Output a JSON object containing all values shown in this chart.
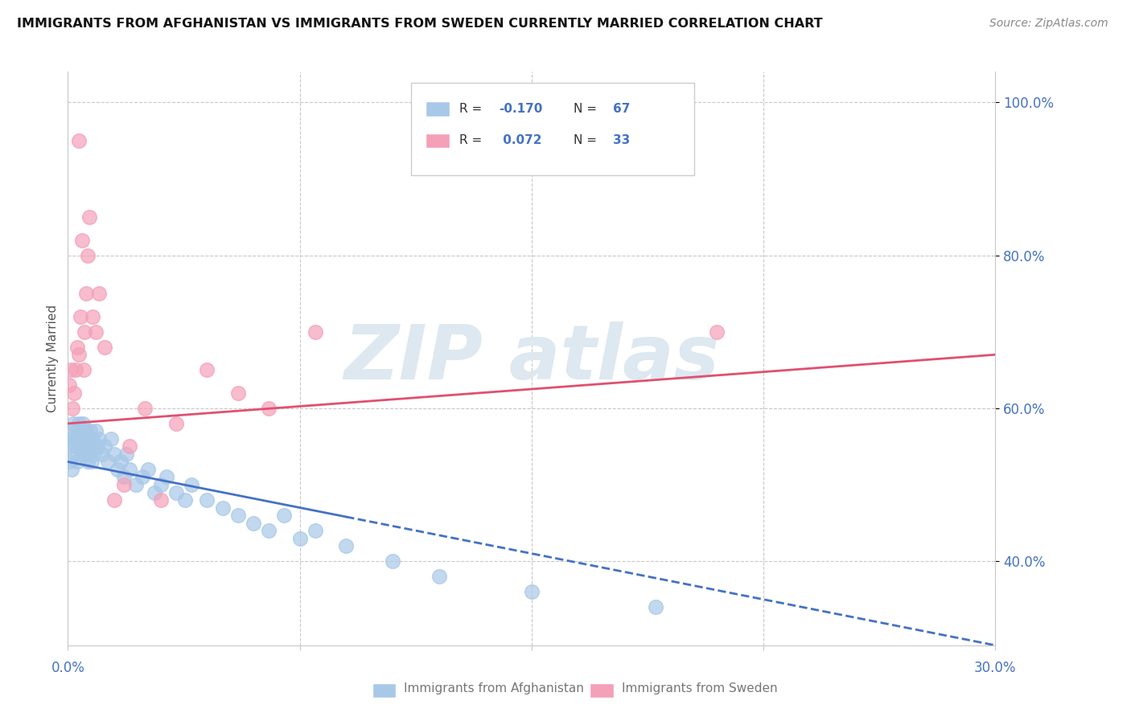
{
  "title": "IMMIGRANTS FROM AFGHANISTAN VS IMMIGRANTS FROM SWEDEN CURRENTLY MARRIED CORRELATION CHART",
  "source": "Source: ZipAtlas.com",
  "ylabel": "Currently Married",
  "xlim": [
    0.0,
    30.0
  ],
  "ylim": [
    29.0,
    104.0
  ],
  "yticks": [
    40.0,
    60.0,
    80.0,
    100.0
  ],
  "ytick_labels": [
    "40.0%",
    "60.0%",
    "80.0%",
    "100.0%"
  ],
  "blue_color": "#a8c8e8",
  "pink_color": "#f4a0b8",
  "blue_line_color": "#4472c4",
  "pink_line_color": "#e05070",
  "legend_text_color": "#4472c4",
  "grid_color": "#c8c8c8",
  "watermark_color": "#dde8f0",
  "afghanistan_x": [
    0.05,
    0.08,
    0.1,
    0.12,
    0.15,
    0.18,
    0.2,
    0.22,
    0.25,
    0.28,
    0.3,
    0.32,
    0.35,
    0.38,
    0.4,
    0.42,
    0.45,
    0.48,
    0.5,
    0.52,
    0.55,
    0.58,
    0.6,
    0.62,
    0.65,
    0.68,
    0.7,
    0.72,
    0.75,
    0.78,
    0.8,
    0.85,
    0.9,
    0.95,
    1.0,
    1.1,
    1.2,
    1.3,
    1.4,
    1.5,
    1.6,
    1.7,
    1.8,
    1.9,
    2.0,
    2.2,
    2.4,
    2.6,
    2.8,
    3.0,
    3.2,
    3.5,
    3.8,
    4.0,
    4.5,
    5.0,
    5.5,
    6.0,
    6.5,
    7.0,
    7.5,
    8.0,
    9.0,
    10.5,
    12.0,
    15.0,
    19.0
  ],
  "afghanistan_y": [
    53.0,
    57.0,
    55.0,
    52.0,
    56.0,
    58.0,
    54.0,
    56.0,
    55.0,
    57.0,
    53.0,
    56.0,
    58.0,
    55.0,
    57.0,
    54.0,
    56.0,
    58.0,
    55.0,
    57.0,
    56.0,
    54.0,
    57.0,
    55.0,
    53.0,
    56.0,
    54.0,
    57.0,
    55.0,
    53.0,
    56.0,
    54.0,
    57.0,
    55.0,
    56.0,
    54.0,
    55.0,
    53.0,
    56.0,
    54.0,
    52.0,
    53.0,
    51.0,
    54.0,
    52.0,
    50.0,
    51.0,
    52.0,
    49.0,
    50.0,
    51.0,
    49.0,
    48.0,
    50.0,
    48.0,
    47.0,
    46.0,
    45.0,
    44.0,
    46.0,
    43.0,
    44.0,
    42.0,
    40.0,
    38.0,
    36.0,
    34.0
  ],
  "sweden_x": [
    0.05,
    0.1,
    0.15,
    0.2,
    0.25,
    0.3,
    0.35,
    0.4,
    0.45,
    0.5,
    0.55,
    0.6,
    0.65,
    0.7,
    0.8,
    0.9,
    1.0,
    1.2,
    1.5,
    1.8,
    2.0,
    2.5,
    3.0,
    3.5,
    4.5,
    5.5,
    6.5,
    8.0,
    21.0
  ],
  "sweden_y": [
    63.0,
    65.0,
    60.0,
    62.0,
    65.0,
    68.0,
    67.0,
    72.0,
    82.0,
    65.0,
    70.0,
    75.0,
    80.0,
    85.0,
    72.0,
    70.0,
    75.0,
    68.0,
    48.0,
    50.0,
    55.0,
    60.0,
    48.0,
    58.0,
    65.0,
    62.0,
    60.0,
    70.0,
    70.0
  ],
  "sweden_outlier_x": [
    0.35
  ],
  "sweden_outlier_y": [
    95.0
  ],
  "blue_line_x0": 0.0,
  "blue_line_y0": 53.0,
  "blue_line_x1": 30.0,
  "blue_line_y1": 29.0,
  "blue_solid_end": 9.0,
  "pink_line_x0": 0.0,
  "pink_line_y0": 58.0,
  "pink_line_x1": 30.0,
  "pink_line_y1": 67.0
}
